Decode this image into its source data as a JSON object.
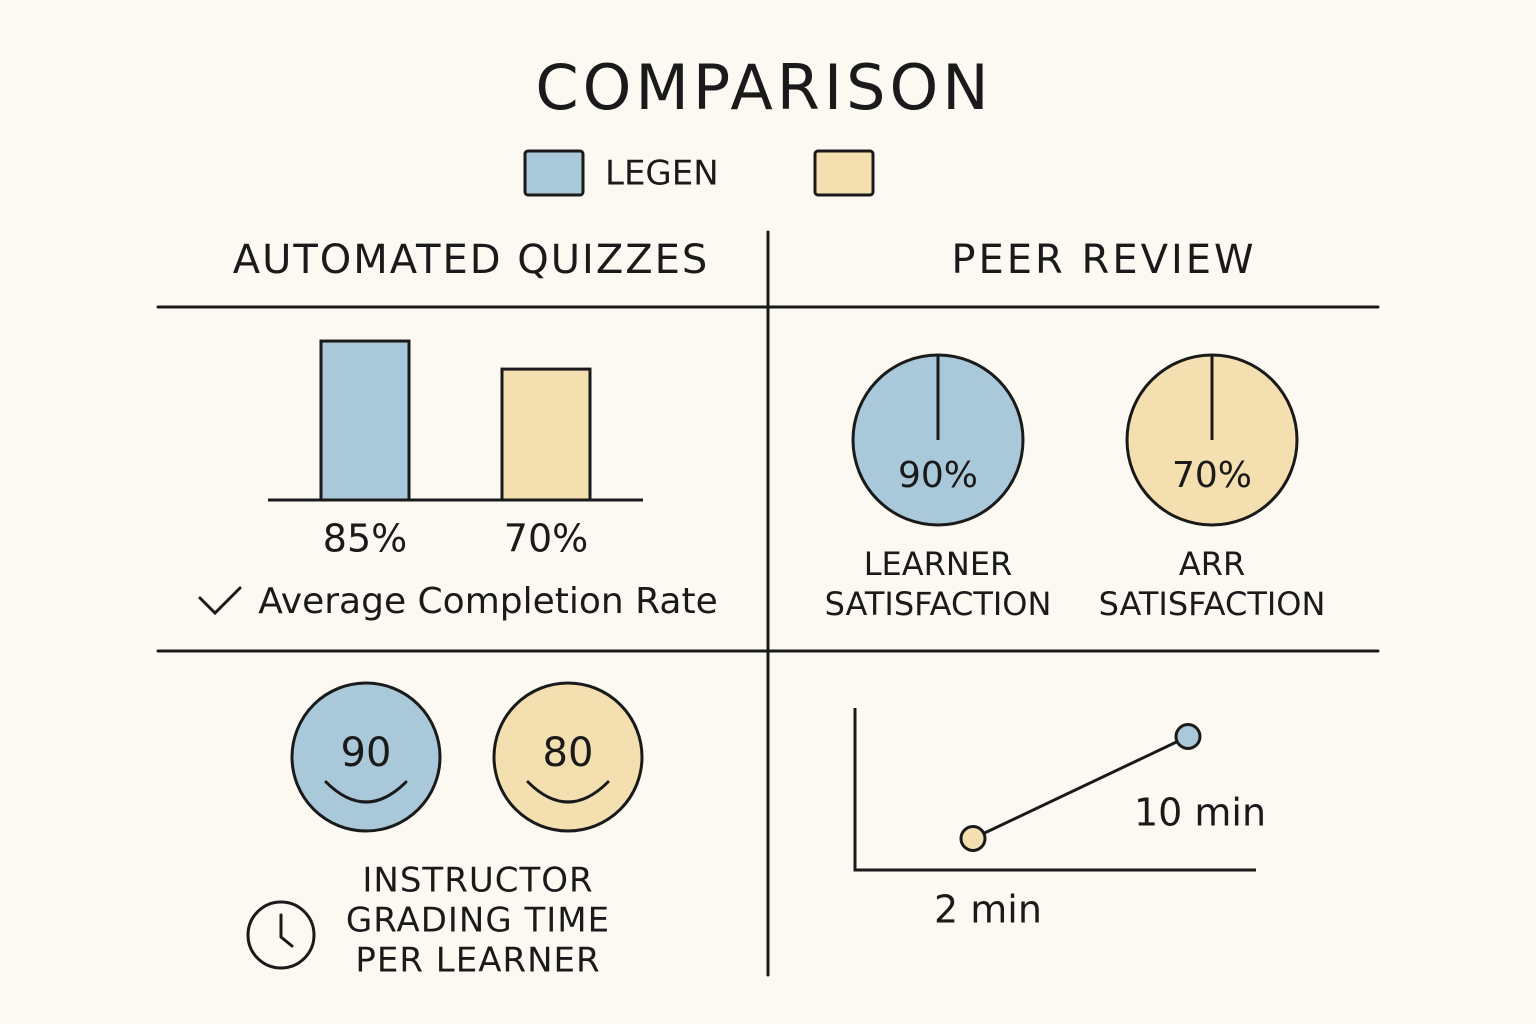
{
  "title": "COMPARISON",
  "legend": [
    {
      "label": "LEGEN",
      "color": "#a9c9da"
    },
    {
      "color": "#f4dfb0"
    }
  ],
  "sections": {
    "left": "AUTOMATED QUIZZES",
    "right": "PEER REVIEW"
  },
  "completion": {
    "type": "bar",
    "caption": "Average Completion Rate",
    "values": [
      85,
      70
    ],
    "value_labels": [
      "85%",
      "70%"
    ],
    "colors": [
      "#a9c9da",
      "#f4dfb0"
    ],
    "ylim": [
      0,
      100
    ]
  },
  "satisfaction": {
    "type": "pie",
    "items": [
      {
        "value": 90,
        "label": "90%",
        "color": "#a9c9da",
        "caption": [
          "LEARNER",
          "SATISFACTION"
        ]
      },
      {
        "value": 70,
        "label": "70%",
        "color": "#f4dfb0",
        "caption": [
          "ARR",
          "SATISFACTION"
        ]
      }
    ]
  },
  "scores": {
    "items": [
      {
        "value": 90,
        "color": "#a9c9da"
      },
      {
        "value": 80,
        "color": "#f4dfb0"
      }
    ],
    "caption": [
      "INSTRUCTOR",
      "GRADING TIME",
      "PER LEARNER"
    ]
  },
  "grading_time": {
    "type": "line",
    "values": [
      2,
      10
    ],
    "value_labels": [
      "2 min",
      "10 min"
    ],
    "colors": [
      "#f4dfb0",
      "#a9c9da"
    ],
    "ylim": [
      0,
      12
    ]
  }
}
